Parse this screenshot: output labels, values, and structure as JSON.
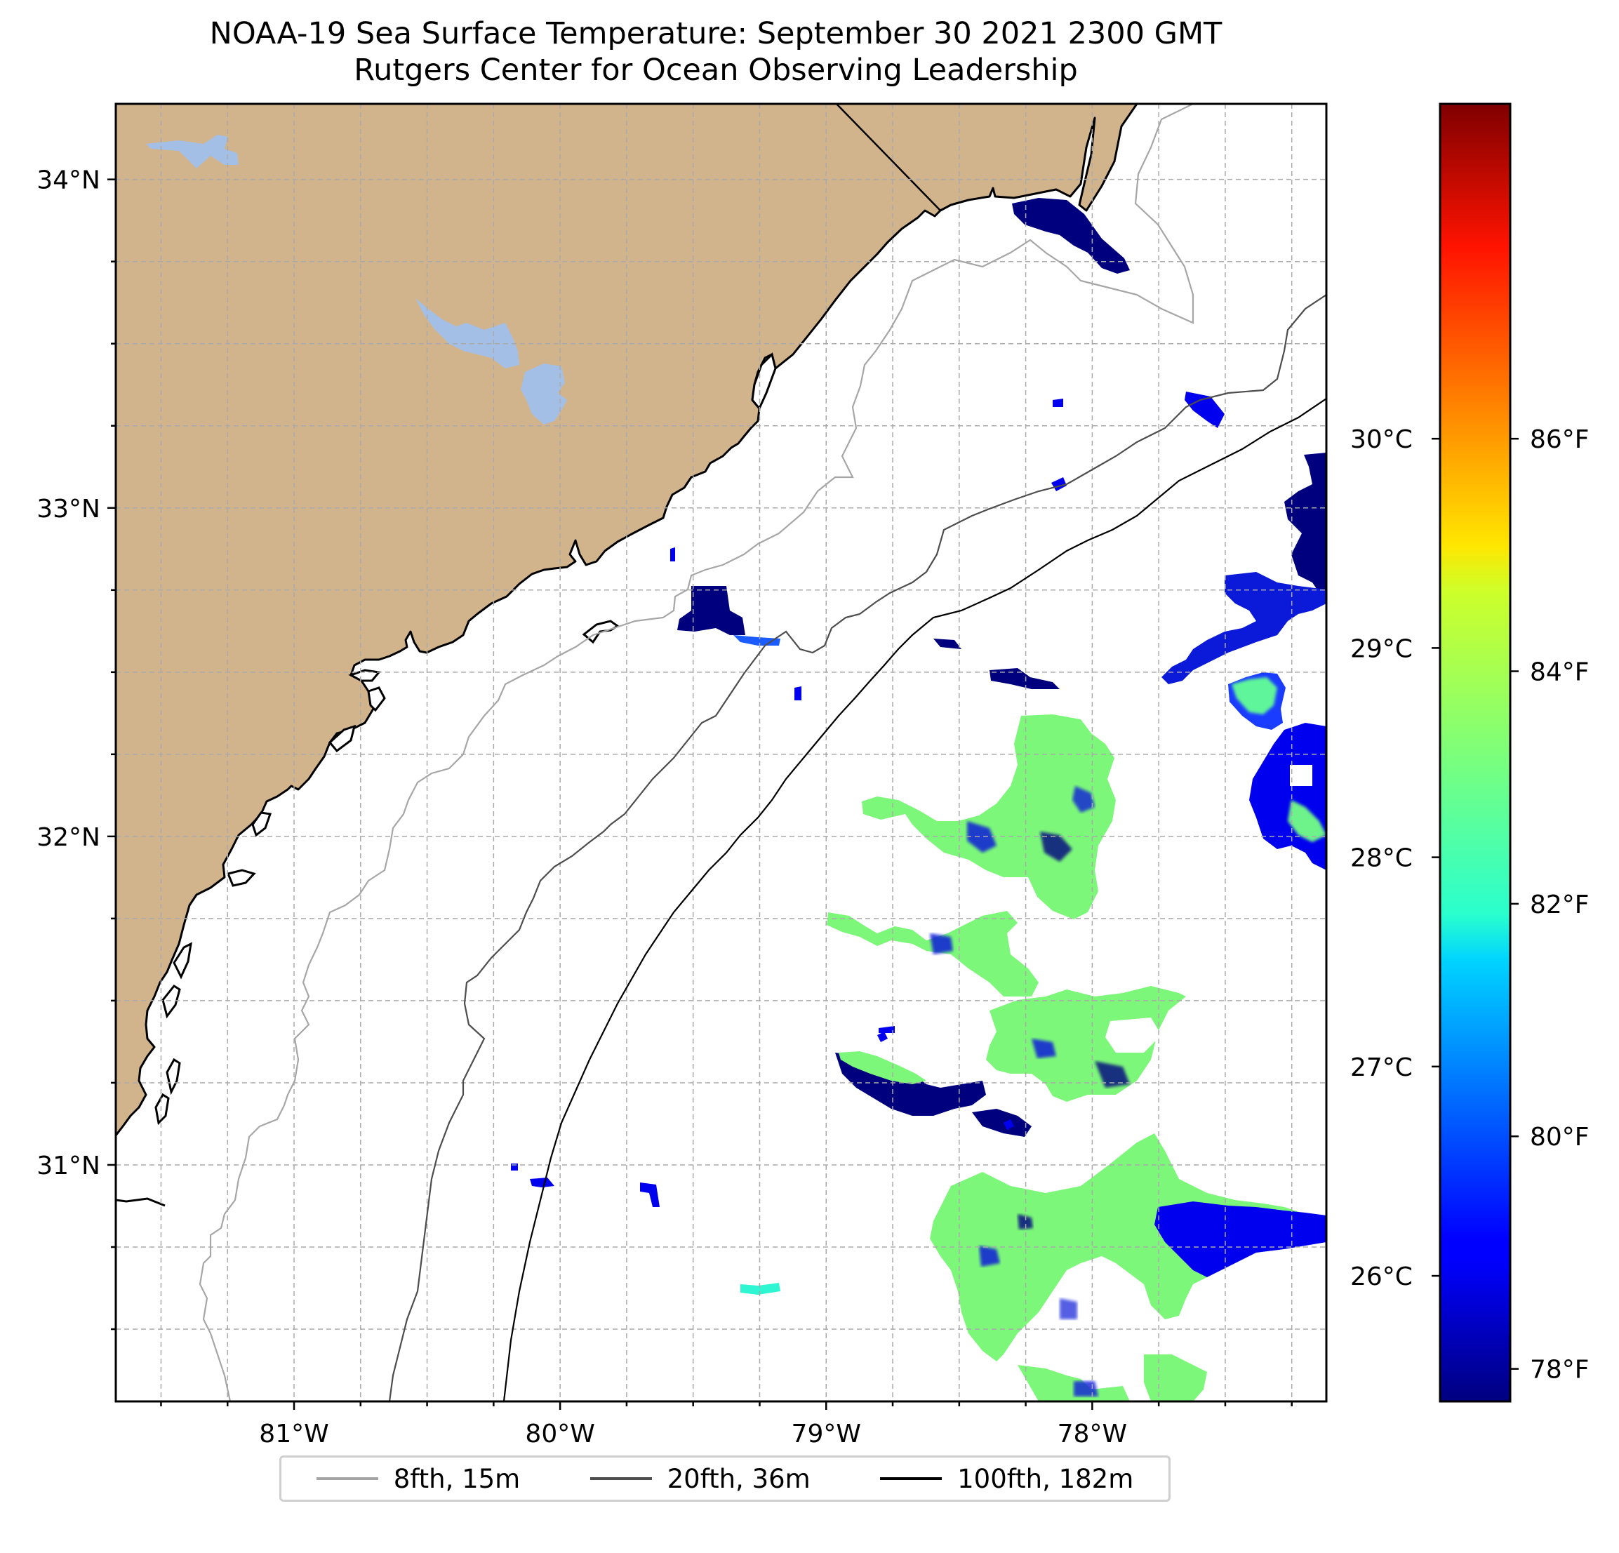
{
  "title": {
    "line1": "NOAA-19 Sea Surface Temperature: September 30 2021 2300 GMT",
    "line2": "Rutgers Center for Ocean Observing Leadership"
  },
  "map": {
    "region": "Southeast US coast (South Carolina / Georgia)",
    "extent": {
      "lon_min": -81.67,
      "lon_max": -77.12,
      "lat_min": 30.28,
      "lat_max": 34.23
    },
    "land_color": "#d2b48c",
    "lake_color": "#a3bfe6",
    "ocean_color": "#ffffff",
    "lon_ticks": [
      {
        "value": -81,
        "label": "81°W"
      },
      {
        "value": -80,
        "label": "80°W"
      },
      {
        "value": -79,
        "label": "79°W"
      },
      {
        "value": -78,
        "label": "78°W"
      }
    ],
    "lat_ticks": [
      {
        "value": 34,
        "label": "34°N"
      },
      {
        "value": 33,
        "label": "33°N"
      },
      {
        "value": 32,
        "label": "32°N"
      },
      {
        "value": 31,
        "label": "31°N"
      }
    ],
    "gridlines": "dashed gray, every 0.25°"
  },
  "colorbar": {
    "colormap": "jet",
    "celsius_ticks": [
      {
        "value": 30,
        "label": "30°C"
      },
      {
        "value": 29,
        "label": "29°C"
      },
      {
        "value": 28,
        "label": "28°C"
      },
      {
        "value": 27,
        "label": "27°C"
      },
      {
        "value": 26,
        "label": "26°C"
      }
    ],
    "fahrenheit_ticks": [
      {
        "value": 86,
        "label": "86°F"
      },
      {
        "value": 84,
        "label": "84°F"
      },
      {
        "value": 82,
        "label": "82°F"
      },
      {
        "value": 80,
        "label": "80°F"
      },
      {
        "value": 78,
        "label": "78°F"
      }
    ]
  },
  "legend": {
    "items": [
      {
        "label": "8fth, 15m",
        "color": "#a6a6a6"
      },
      {
        "label": "20fth, 36m",
        "color": "#4d4d4d"
      },
      {
        "label": "100fth, 182m",
        "color": "#000000"
      }
    ]
  }
}
